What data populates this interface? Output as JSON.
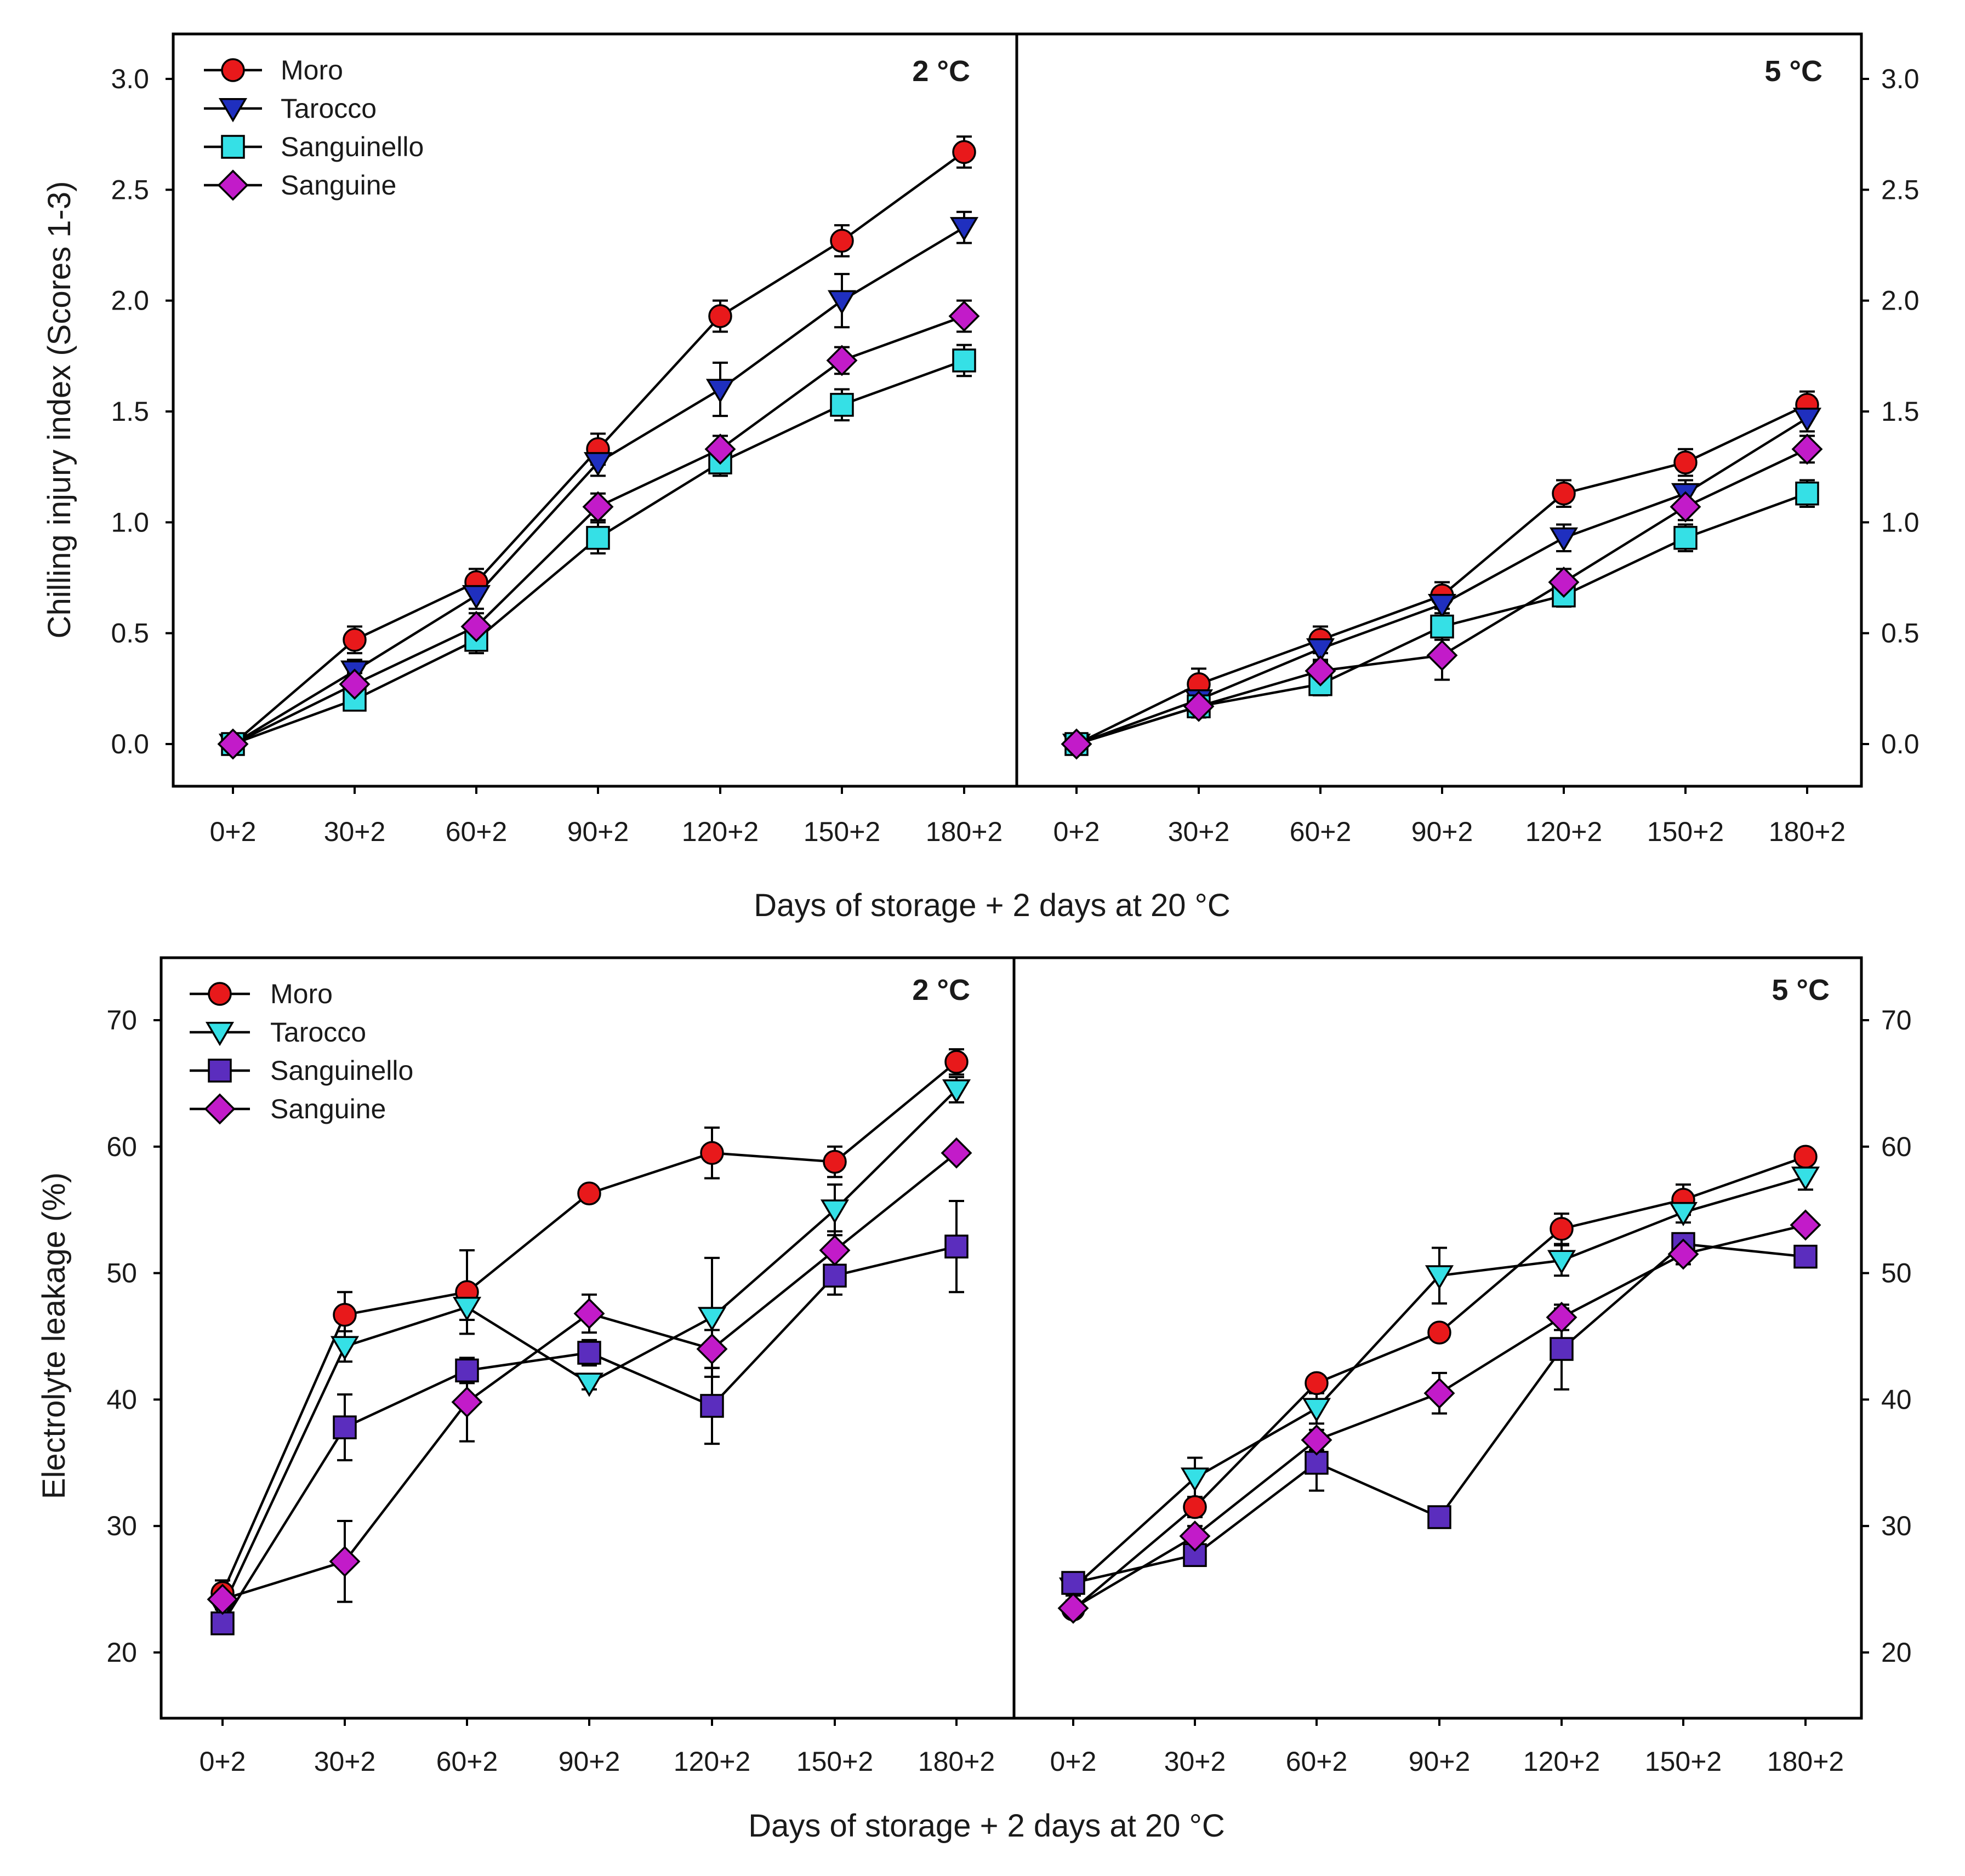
{
  "chart_data": [
    {
      "type": "line",
      "ylabel": "Chilling injury index (Scores 1-3)",
      "xlabel": "Days of storage + 2 days at 20 °C",
      "ylim": [
        -0.2,
        3.2
      ],
      "yticks": [
        "0.0",
        "0.5",
        "1.0",
        "1.5",
        "2.0",
        "2.5",
        "3.0"
      ],
      "categories": [
        "0+2",
        "30+2",
        "60+2",
        "90+2",
        "120+2",
        "150+2",
        "180+2"
      ],
      "legend_position": "top-left",
      "panels": [
        {
          "label": "2 °C",
          "series": [
            {
              "name": "Moro",
              "color": "#e8191b",
              "marker": "circle",
              "values": [
                0,
                0.47,
                0.73,
                1.33,
                1.93,
                2.27,
                2.67
              ],
              "errors": [
                0.02,
                0.06,
                0.06,
                0.07,
                0.07,
                0.07,
                0.07
              ]
            },
            {
              "name": "Tarocco",
              "color": "#1f2fbf",
              "marker": "triangle-down",
              "values": [
                0,
                0.33,
                0.67,
                1.27,
                1.6,
                2.0,
                2.33
              ],
              "errors": [
                0.02,
                0.05,
                0.06,
                0.06,
                0.12,
                0.12,
                0.07
              ]
            },
            {
              "name": "Sanguinello",
              "color": "#35e0e6",
              "marker": "square",
              "values": [
                0,
                0.2,
                0.47,
                0.93,
                1.27,
                1.53,
                1.73
              ],
              "errors": [
                0.02,
                0.04,
                0.06,
                0.07,
                0.06,
                0.07,
                0.07
              ]
            },
            {
              "name": "Sanguine",
              "color": "#c21bc9",
              "marker": "diamond",
              "values": [
                0,
                0.27,
                0.53,
                1.07,
                1.33,
                1.73,
                1.93
              ],
              "errors": [
                0.02,
                0.05,
                0.06,
                0.06,
                0.06,
                0.06,
                0.07
              ]
            }
          ]
        },
        {
          "label": "5 °C",
          "series": [
            {
              "name": "Moro",
              "color": "#e8191b",
              "marker": "circle",
              "values": [
                0,
                0.27,
                0.47,
                0.67,
                1.13,
                1.27,
                1.53
              ],
              "errors": [
                0.02,
                0.07,
                0.06,
                0.06,
                0.06,
                0.06,
                0.06
              ]
            },
            {
              "name": "Tarocco",
              "color": "#1f2fbf",
              "marker": "triangle-down",
              "values": [
                0,
                0.2,
                0.43,
                0.63,
                0.93,
                1.13,
                1.47
              ],
              "errors": [
                0.02,
                0.05,
                0.06,
                0.06,
                0.06,
                0.06,
                0.06
              ]
            },
            {
              "name": "Sanguinello",
              "color": "#35e0e6",
              "marker": "square",
              "values": [
                0,
                0.17,
                0.27,
                0.53,
                0.67,
                0.93,
                1.13
              ],
              "errors": [
                0.02,
                0.05,
                0.05,
                0.06,
                0.05,
                0.06,
                0.06
              ]
            },
            {
              "name": "Sanguine",
              "color": "#c21bc9",
              "marker": "diamond",
              "values": [
                0,
                0.17,
                0.33,
                0.4,
                0.73,
                1.07,
                1.33
              ],
              "errors": [
                0.02,
                0.04,
                0.05,
                0.11,
                0.06,
                0.06,
                0.06
              ]
            }
          ]
        }
      ]
    },
    {
      "type": "line",
      "ylabel": "Electrolyte leakage (%)",
      "xlabel": "Days of storage + 2 days at 20 °C",
      "ylim": [
        15,
        75
      ],
      "yticks": [
        "20",
        "30",
        "40",
        "50",
        "60",
        "70"
      ],
      "categories": [
        "0+2",
        "30+2",
        "60+2",
        "90+2",
        "120+2",
        "150+2",
        "180+2"
      ],
      "legend_position": "top-left",
      "panels": [
        {
          "label": "2 °C",
          "series": [
            {
              "name": "Moro",
              "color": "#e8191b",
              "marker": "circle",
              "values": [
                24.7,
                46.7,
                48.5,
                56.3,
                59.5,
                58.8,
                66.7
              ],
              "errors": [
                1.0,
                1.8,
                3.3,
                0.5,
                2.0,
                1.2,
                1.0
              ]
            },
            {
              "name": "Tarocco",
              "color": "#35e0e6",
              "marker": "triangle-down",
              "values": [
                23.5,
                44.2,
                47.3,
                41.3,
                46.5,
                55.0,
                64.5
              ],
              "errors": [
                0.8,
                1.2,
                1.0,
                0.5,
                4.7,
                2.0,
                1.0
              ]
            },
            {
              "name": "Sanguinello",
              "color": "#5b2dbe",
              "marker": "square",
              "values": [
                22.3,
                37.8,
                42.3,
                43.7,
                39.5,
                49.8,
                52.1
              ],
              "errors": [
                0.6,
                2.6,
                1.0,
                1.0,
                3.0,
                1.5,
                3.6
              ]
            },
            {
              "name": "Sanguine",
              "color": "#c21bc9",
              "marker": "diamond",
              "values": [
                24.2,
                27.2,
                39.8,
                46.8,
                44.0,
                51.8,
                59.5
              ],
              "errors": [
                0.8,
                3.2,
                3.1,
                1.5,
                1.5,
                1.5,
                0.5
              ]
            }
          ]
        },
        {
          "label": "5 °C",
          "series": [
            {
              "name": "Moro",
              "color": "#e8191b",
              "marker": "circle",
              "values": [
                23.4,
                31.5,
                41.3,
                45.3,
                53.5,
                55.8,
                59.2
              ],
              "errors": [
                0.6,
                0.8,
                0.6,
                0.5,
                1.2,
                1.2,
                0.5
              ]
            },
            {
              "name": "Tarocco",
              "color": "#35e0e6",
              "marker": "triangle-down",
              "values": [
                25.1,
                33.8,
                39.3,
                49.8,
                51.0,
                54.8,
                57.6
              ],
              "errors": [
                0.6,
                1.6,
                1.2,
                2.2,
                1.2,
                0.8,
                1.0
              ]
            },
            {
              "name": "Sanguinello",
              "color": "#5b2dbe",
              "marker": "square",
              "values": [
                25.5,
                27.7,
                35.0,
                30.7,
                44.0,
                52.3,
                51.3
              ],
              "errors": [
                0.6,
                0.6,
                2.2,
                0.5,
                3.2,
                0.8,
                0.5
              ]
            },
            {
              "name": "Sanguine",
              "color": "#c21bc9",
              "marker": "diamond",
              "values": [
                23.5,
                29.2,
                36.8,
                40.5,
                46.5,
                51.5,
                53.8
              ],
              "errors": [
                0.6,
                0.8,
                0.8,
                1.6,
                1.0,
                0.8,
                0.5
              ]
            }
          ]
        }
      ]
    }
  ]
}
